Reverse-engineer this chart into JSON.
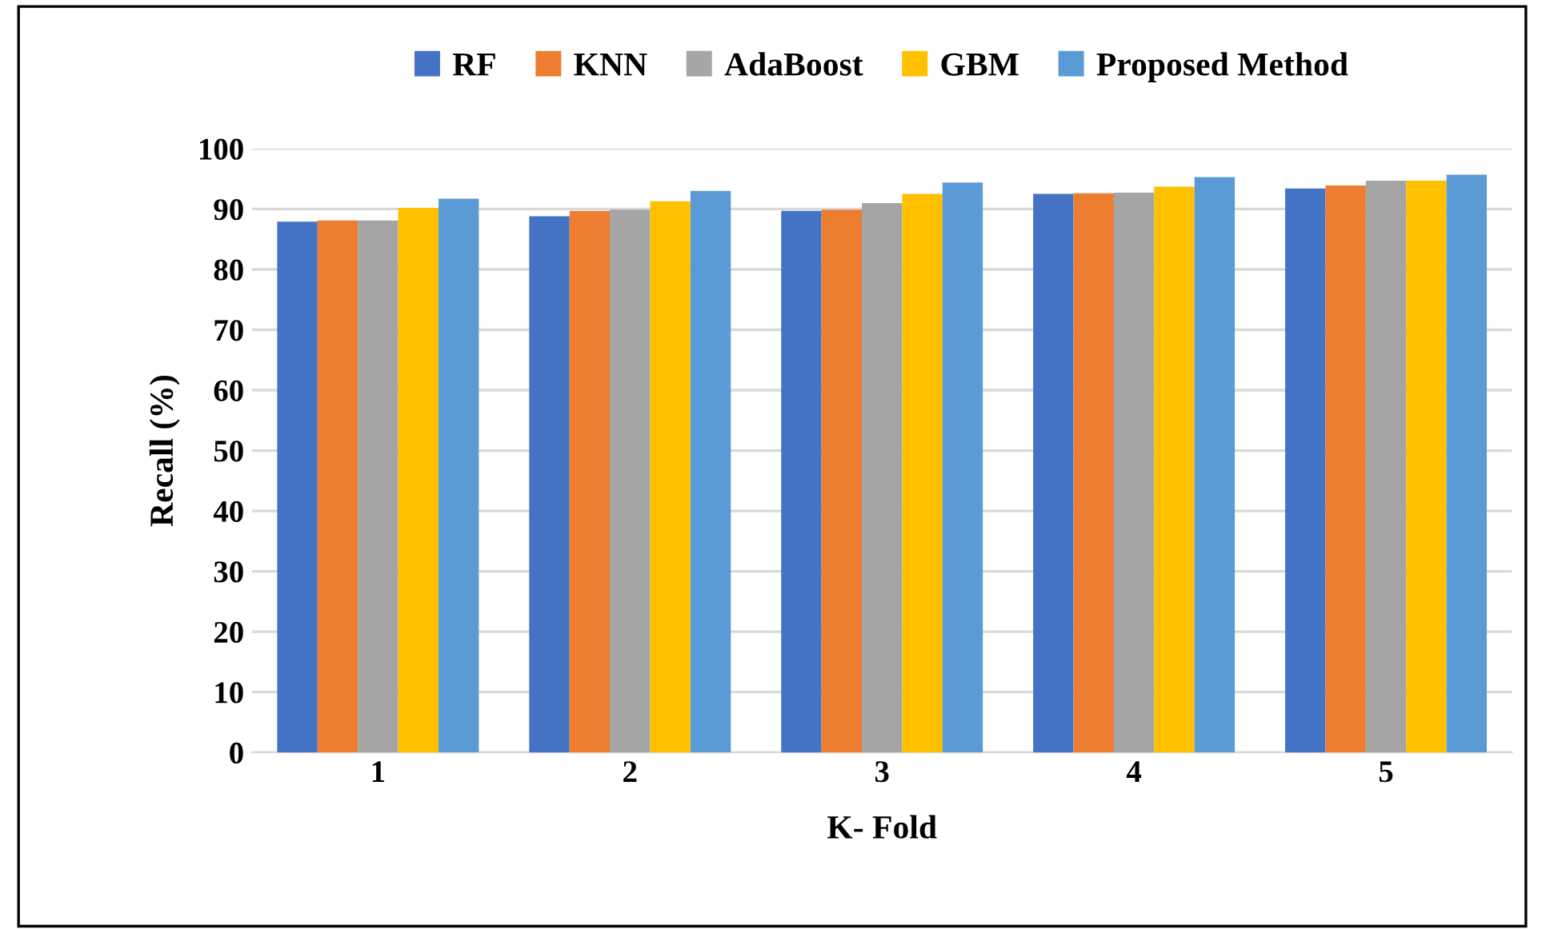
{
  "chart_data": {
    "type": "bar",
    "xlabel": "K- Fold",
    "ylabel": "Recall (%)",
    "categories": [
      "1",
      "2",
      "3",
      "4",
      "5"
    ],
    "series": [
      {
        "name": "RF",
        "color": "#4472c4",
        "values": [
          87.9,
          88.8,
          89.7,
          92.5,
          93.4
        ]
      },
      {
        "name": "KNN",
        "color": "#ed7d31",
        "values": [
          88.1,
          89.7,
          89.9,
          92.6,
          93.9
        ]
      },
      {
        "name": "AdaBoost",
        "color": "#a5a5a5",
        "values": [
          88.1,
          89.9,
          91.0,
          92.7,
          94.7
        ]
      },
      {
        "name": "GBM",
        "color": "#ffc000",
        "values": [
          90.2,
          91.3,
          92.5,
          93.7,
          94.7
        ]
      },
      {
        "name": "Proposed Method",
        "color": "#5b9bd5",
        "values": [
          91.7,
          93.0,
          94.4,
          95.3,
          95.7
        ]
      }
    ],
    "ylim": [
      0,
      100
    ],
    "yticks": [
      0,
      10,
      20,
      30,
      40,
      50,
      60,
      70,
      80,
      90,
      100
    ],
    "grid": "y",
    "legend": "top"
  }
}
